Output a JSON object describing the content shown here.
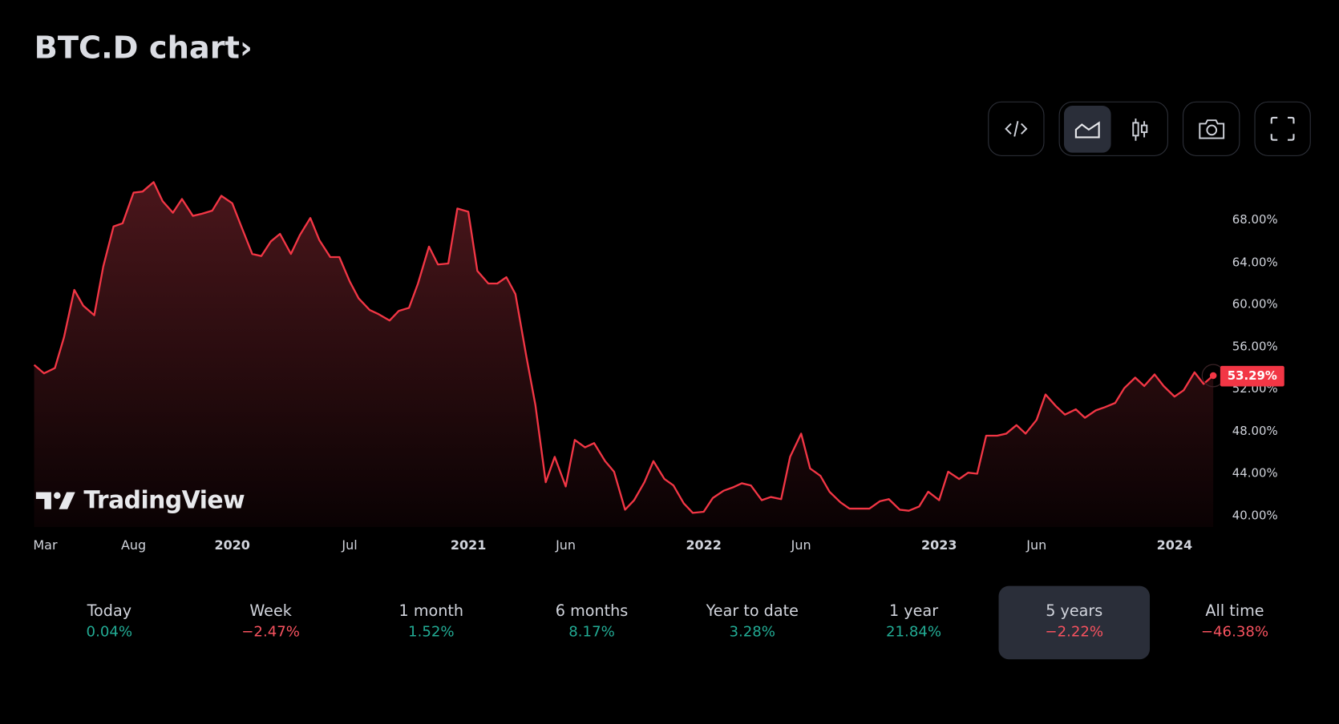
{
  "title": "BTC.D chart",
  "title_chevron": "›",
  "toolbar": {
    "buttons": [
      {
        "icon": "embed-code-icon"
      },
      {
        "icon": "area-chart-icon",
        "active": true
      },
      {
        "icon": "candlestick-chart-icon"
      },
      {
        "icon": "camera-icon"
      },
      {
        "icon": "fullscreen-icon"
      }
    ]
  },
  "logo": "TradingView",
  "colors": {
    "line": "#f23645",
    "positive": "#22ab94",
    "negative": "#f7525f",
    "active_bg": "#2a2e39"
  },
  "chart_data": {
    "type": "area",
    "ylim": [
      40,
      71.7
    ],
    "y_ticks": [
      "68.00%",
      "64.00%",
      "60.00%",
      "56.00%",
      "52.00%",
      "48.00%",
      "44.00%",
      "40.00%"
    ],
    "y_tick_values": [
      68,
      64,
      60,
      56,
      52,
      48,
      44,
      40
    ],
    "x_ticks": [
      {
        "label": "Mar",
        "date": "2019-03-01"
      },
      {
        "label": "Aug",
        "date": "2019-08-01"
      },
      {
        "label": "2020",
        "date": "2020-01-01",
        "year": true
      },
      {
        "label": "Jul",
        "date": "2020-07-01"
      },
      {
        "label": "2021",
        "date": "2021-01-01",
        "year": true
      },
      {
        "label": "Jun",
        "date": "2021-06-01"
      },
      {
        "label": "2022",
        "date": "2022-01-01",
        "year": true
      },
      {
        "label": "Jun",
        "date": "2022-06-01"
      },
      {
        "label": "2023",
        "date": "2023-01-01",
        "year": true
      },
      {
        "label": "Jun",
        "date": "2023-06-01"
      },
      {
        "label": "2024",
        "date": "2024-01-01",
        "year": true
      }
    ],
    "last_price_label": "53.29%",
    "last_value": 53.29,
    "points": [
      [
        "2019-03-01",
        54.3
      ],
      [
        "2019-03-15",
        53.5
      ],
      [
        "2019-04-01",
        54.0
      ],
      [
        "2019-04-15",
        56.9
      ],
      [
        "2019-05-01",
        61.4
      ],
      [
        "2019-05-15",
        59.9
      ],
      [
        "2019-06-01",
        59.0
      ],
      [
        "2019-06-15",
        63.6
      ],
      [
        "2019-07-01",
        67.4
      ],
      [
        "2019-07-15",
        67.7
      ],
      [
        "2019-08-01",
        70.6
      ],
      [
        "2019-08-15",
        70.7
      ],
      [
        "2019-09-01",
        71.6
      ],
      [
        "2019-09-15",
        69.8
      ],
      [
        "2019-10-01",
        68.7
      ],
      [
        "2019-10-15",
        70.0
      ],
      [
        "2019-11-01",
        68.4
      ],
      [
        "2019-11-15",
        68.6
      ],
      [
        "2019-12-01",
        68.9
      ],
      [
        "2019-12-15",
        70.3
      ],
      [
        "2020-01-01",
        69.6
      ],
      [
        "2020-01-15",
        67.4
      ],
      [
        "2020-02-01",
        64.8
      ],
      [
        "2020-02-15",
        64.6
      ],
      [
        "2020-03-01",
        66.0
      ],
      [
        "2020-03-15",
        66.7
      ],
      [
        "2020-04-01",
        64.8
      ],
      [
        "2020-04-15",
        66.6
      ],
      [
        "2020-05-01",
        68.2
      ],
      [
        "2020-05-15",
        66.1
      ],
      [
        "2020-06-01",
        64.5
      ],
      [
        "2020-06-15",
        64.5
      ],
      [
        "2020-07-01",
        62.2
      ],
      [
        "2020-07-15",
        60.6
      ],
      [
        "2020-08-01",
        59.5
      ],
      [
        "2020-08-15",
        59.1
      ],
      [
        "2020-09-01",
        58.5
      ],
      [
        "2020-09-15",
        59.4
      ],
      [
        "2020-10-01",
        59.7
      ],
      [
        "2020-10-15",
        62.0
      ],
      [
        "2020-11-01",
        65.5
      ],
      [
        "2020-11-15",
        63.8
      ],
      [
        "2020-12-01",
        63.9
      ],
      [
        "2020-12-15",
        69.1
      ],
      [
        "2021-01-01",
        68.8
      ],
      [
        "2021-01-15",
        63.2
      ],
      [
        "2021-02-01",
        62.0
      ],
      [
        "2021-02-15",
        62.0
      ],
      [
        "2021-03-01",
        62.6
      ],
      [
        "2021-03-15",
        61.0
      ],
      [
        "2021-04-01",
        55.1
      ],
      [
        "2021-04-15",
        50.5
      ],
      [
        "2021-05-01",
        43.2
      ],
      [
        "2021-05-15",
        45.6
      ],
      [
        "2021-06-01",
        42.8
      ],
      [
        "2021-06-15",
        47.2
      ],
      [
        "2021-07-01",
        46.5
      ],
      [
        "2021-07-15",
        46.9
      ],
      [
        "2021-08-01",
        45.2
      ],
      [
        "2021-08-15",
        44.2
      ],
      [
        "2021-09-01",
        40.6
      ],
      [
        "2021-09-15",
        41.5
      ],
      [
        "2021-10-01",
        43.2
      ],
      [
        "2021-10-15",
        45.2
      ],
      [
        "2021-11-01",
        43.5
      ],
      [
        "2021-11-15",
        42.9
      ],
      [
        "2021-12-01",
        41.2
      ],
      [
        "2021-12-15",
        40.3
      ],
      [
        "2022-01-01",
        40.4
      ],
      [
        "2022-01-15",
        41.7
      ],
      [
        "2022-02-01",
        42.4
      ],
      [
        "2022-02-15",
        42.7
      ],
      [
        "2022-03-01",
        43.1
      ],
      [
        "2022-03-15",
        42.9
      ],
      [
        "2022-04-01",
        41.5
      ],
      [
        "2022-04-15",
        41.8
      ],
      [
        "2022-05-01",
        41.6
      ],
      [
        "2022-05-15",
        45.6
      ],
      [
        "2022-06-01",
        47.8
      ],
      [
        "2022-06-15",
        44.5
      ],
      [
        "2022-07-01",
        43.8
      ],
      [
        "2022-07-15",
        42.3
      ],
      [
        "2022-08-01",
        41.3
      ],
      [
        "2022-08-15",
        40.7
      ],
      [
        "2022-09-01",
        40.7
      ],
      [
        "2022-09-15",
        40.7
      ],
      [
        "2022-10-01",
        41.4
      ],
      [
        "2022-10-15",
        41.6
      ],
      [
        "2022-11-01",
        40.6
      ],
      [
        "2022-11-15",
        40.5
      ],
      [
        "2022-12-01",
        40.9
      ],
      [
        "2022-12-15",
        42.3
      ],
      [
        "2023-01-01",
        41.5
      ],
      [
        "2023-01-15",
        44.2
      ],
      [
        "2023-02-01",
        43.5
      ],
      [
        "2023-02-15",
        44.1
      ],
      [
        "2023-03-01",
        44.0
      ],
      [
        "2023-03-15",
        47.6
      ],
      [
        "2023-04-01",
        47.6
      ],
      [
        "2023-04-15",
        47.8
      ],
      [
        "2023-05-01",
        48.6
      ],
      [
        "2023-05-15",
        47.8
      ],
      [
        "2023-06-01",
        49.1
      ],
      [
        "2023-06-15",
        51.5
      ],
      [
        "2023-07-01",
        50.4
      ],
      [
        "2023-07-15",
        49.6
      ],
      [
        "2023-08-01",
        50.1
      ],
      [
        "2023-08-15",
        49.3
      ],
      [
        "2023-09-01",
        50.0
      ],
      [
        "2023-09-15",
        50.3
      ],
      [
        "2023-10-01",
        50.7
      ],
      [
        "2023-10-15",
        52.1
      ],
      [
        "2023-11-01",
        53.1
      ],
      [
        "2023-11-15",
        52.3
      ],
      [
        "2023-12-01",
        53.4
      ],
      [
        "2023-12-15",
        52.3
      ],
      [
        "2024-01-01",
        51.3
      ],
      [
        "2024-01-15",
        51.9
      ],
      [
        "2024-02-01",
        53.6
      ],
      [
        "2024-02-15",
        52.5
      ],
      [
        "2024-03-01",
        53.29
      ]
    ]
  },
  "periods": [
    {
      "label": "Today",
      "value": "0.04%",
      "sign": "pos"
    },
    {
      "label": "Week",
      "value": "−2.47%",
      "sign": "neg"
    },
    {
      "label": "1 month",
      "value": "1.52%",
      "sign": "pos"
    },
    {
      "label": "6 months",
      "value": "8.17%",
      "sign": "pos"
    },
    {
      "label": "Year to date",
      "value": "3.28%",
      "sign": "pos"
    },
    {
      "label": "1 year",
      "value": "21.84%",
      "sign": "pos"
    },
    {
      "label": "5 years",
      "value": "−2.22%",
      "sign": "neg",
      "active": true
    },
    {
      "label": "All time",
      "value": "−46.38%",
      "sign": "neg"
    }
  ]
}
